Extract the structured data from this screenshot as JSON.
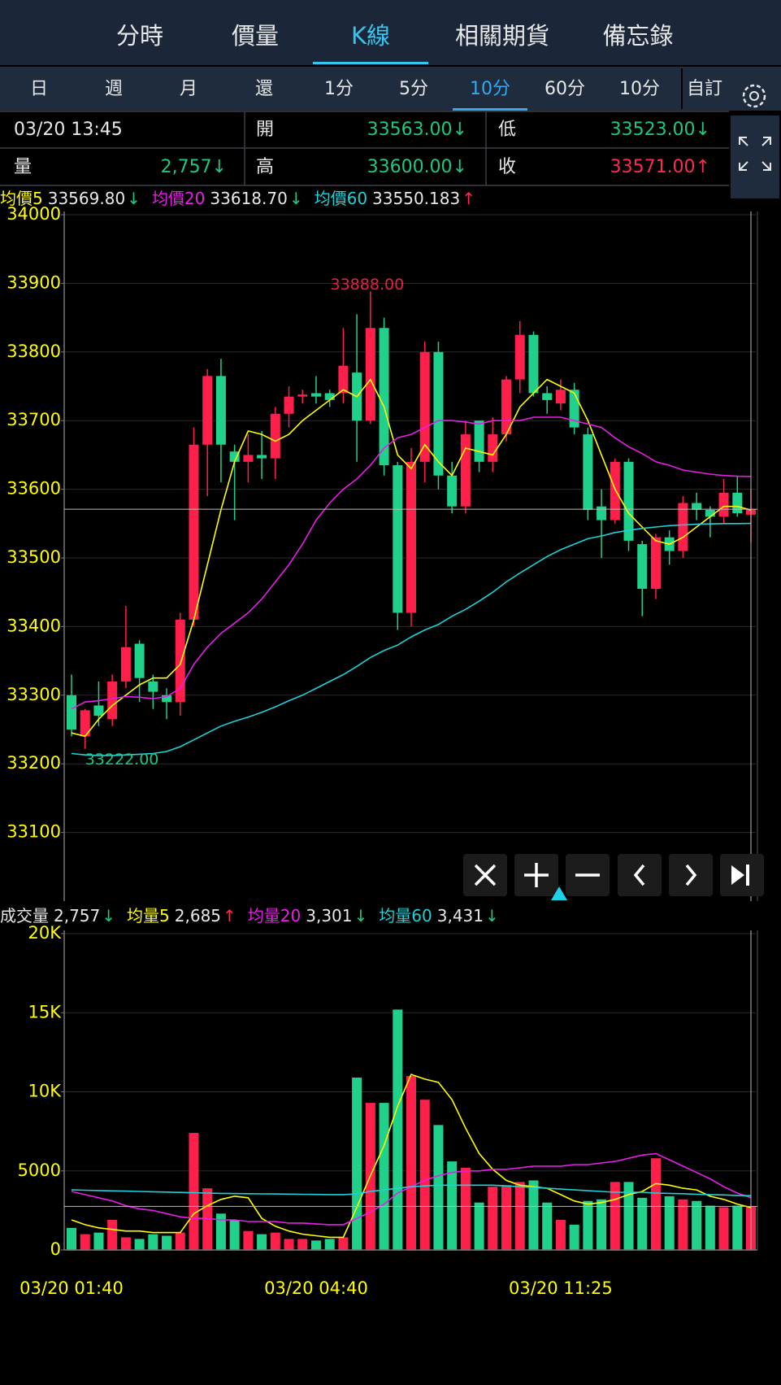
{
  "tabs": {
    "items": [
      "分時",
      "價量",
      "K線",
      "相關期貨",
      "備忘錄"
    ],
    "active": 2
  },
  "periods": {
    "items": [
      "日",
      "週",
      "月",
      "還",
      "1分",
      "5分",
      "10分",
      "60分",
      "10分",
      "自訂"
    ],
    "active": 6
  },
  "quote": {
    "time": "03/20 13:45",
    "items": [
      {
        "label": "量",
        "value": "2,757",
        "arrow": "↓",
        "color": "#1fc77f"
      },
      {
        "label": "開",
        "value": "33563.00",
        "arrow": "↓",
        "color": "#1fc77f"
      },
      {
        "label": "高",
        "value": "33600.00",
        "arrow": "↓",
        "color": "#1fc77f"
      },
      {
        "label": "低",
        "value": "33523.00",
        "arrow": "↓",
        "color": "#1fc77f"
      },
      {
        "label": "收",
        "value": "33571.00",
        "arrow": "↑",
        "color": "#ff2a50"
      }
    ]
  },
  "chart_data": [
    {
      "type": "candlestick",
      "up_color": "#ff1f4b",
      "down_color": "#1fd18a",
      "grid": true,
      "open": [
        33300,
        33240,
        33285,
        33265,
        33320,
        33375,
        33320,
        33300,
        33290,
        33410,
        33665,
        33765,
        33655,
        33640,
        33650,
        33645,
        33710,
        33735,
        33740,
        33740,
        33740,
        33770,
        33700,
        33835,
        33635,
        33420,
        33640,
        33800,
        33620,
        33575,
        33700,
        33640,
        33680,
        33760,
        33825,
        33740,
        33725,
        33745,
        33680,
        33575,
        33555,
        33640,
        33520,
        33455,
        33530,
        33510,
        33580,
        33570,
        33560,
        33595,
        33563
      ],
      "high": [
        33330,
        33280,
        33320,
        33330,
        33430,
        33380,
        33330,
        33310,
        33420,
        33690,
        33775,
        33790,
        33665,
        33680,
        33685,
        33720,
        33750,
        33745,
        33765,
        33745,
        33835,
        33855,
        33888,
        33850,
        33640,
        33660,
        33815,
        33815,
        33640,
        33700,
        33700,
        33705,
        33765,
        33845,
        33830,
        33750,
        33760,
        33755,
        33690,
        33600,
        33645,
        33645,
        33525,
        33535,
        33540,
        33590,
        33595,
        33575,
        33615,
        33620,
        33600
      ],
      "low": [
        33240,
        33222,
        33255,
        33255,
        33310,
        33290,
        33280,
        33265,
        33270,
        33400,
        33590,
        33610,
        33555,
        33610,
        33615,
        33615,
        33690,
        33725,
        33725,
        33720,
        33725,
        33640,
        33695,
        33620,
        33395,
        33400,
        33610,
        33600,
        33565,
        33565,
        33625,
        33625,
        33670,
        33740,
        33735,
        33710,
        33715,
        33680,
        33555,
        33500,
        33550,
        33510,
        33415,
        33440,
        33490,
        33500,
        33555,
        33530,
        33550,
        33560,
        33523
      ],
      "close": [
        33250,
        33278,
        33270,
        33320,
        33370,
        33325,
        33305,
        33290,
        33410,
        33665,
        33765,
        33665,
        33640,
        33650,
        33645,
        33710,
        33735,
        33738,
        33735,
        33730,
        33780,
        33700,
        33835,
        33635,
        33420,
        33640,
        33800,
        33620,
        33575,
        33680,
        33640,
        33680,
        33760,
        33825,
        33740,
        33730,
        33745,
        33690,
        33570,
        33555,
        33640,
        33525,
        33455,
        33530,
        33510,
        33580,
        33570,
        33560,
        33595,
        33565,
        33571
      ],
      "ylim": [
        33000,
        34000
      ],
      "yticks": [
        33100,
        33200,
        33300,
        33400,
        33500,
        33600,
        33700,
        33800,
        33900,
        34000
      ],
      "max_label": "33888.00",
      "min_label": "33222.00",
      "series": [
        {
          "name": "均價5",
          "color": "#ffff00",
          "last_label": "33569.80",
          "arrow": "↓",
          "arrow_color": "#1fc77f",
          "values": [
            33245,
            33240,
            33265,
            33285,
            33300,
            33315,
            33325,
            33325,
            33345,
            33410,
            33490,
            33570,
            33640,
            33685,
            33680,
            33670,
            33680,
            33700,
            33715,
            33730,
            33745,
            33735,
            33760,
            33720,
            33650,
            33630,
            33665,
            33640,
            33620,
            33660,
            33655,
            33650,
            33680,
            33720,
            33740,
            33760,
            33750,
            33740,
            33700,
            33650,
            33600,
            33565,
            33545,
            33525,
            33520,
            33530,
            33545,
            33560,
            33575,
            33575,
            33569.8
          ]
        },
        {
          "name": "均價20",
          "color": "#e81ee8",
          "last_label": "33618.70",
          "arrow": "↓",
          "arrow_color": "#1fc77f",
          "values": [
            33280,
            33290,
            33292,
            33295,
            33298,
            33297,
            33295,
            33298,
            33310,
            33345,
            33370,
            33390,
            33405,
            33420,
            33440,
            33465,
            33490,
            33520,
            33555,
            33580,
            33600,
            33615,
            33635,
            33660,
            33675,
            33680,
            33690,
            33700,
            33700,
            33698,
            33695,
            33700,
            33700,
            33700,
            33705,
            33705,
            33705,
            33700,
            33695,
            33690,
            33675,
            33662,
            33652,
            33640,
            33635,
            33628,
            33625,
            33622,
            33620,
            33619,
            33618.7
          ]
        },
        {
          "name": "均價60",
          "color": "#1ed2d8",
          "last_label": "33550.183",
          "arrow": "↑",
          "arrow_color": "#ff2a50",
          "values": [
            33215,
            33213,
            33212,
            33212,
            33213,
            33214,
            33215,
            33218,
            33225,
            33235,
            33245,
            33255,
            33262,
            33268,
            33275,
            33283,
            33292,
            33300,
            33310,
            33320,
            33330,
            33342,
            33355,
            33365,
            33373,
            33385,
            33395,
            33403,
            33415,
            33425,
            33437,
            33450,
            33465,
            33478,
            33490,
            33502,
            33512,
            33520,
            33528,
            33532,
            33537,
            33540,
            33543,
            33545,
            33547,
            33548,
            33549,
            33549.5,
            33550,
            33550,
            33550.183
          ]
        }
      ]
    },
    {
      "type": "bar",
      "title": "成交量",
      "title_value": "2,757",
      "title_arrow": "↓",
      "title_arrow_color": "#1fc77f",
      "grid": true,
      "categories": [
        "03/20 01:40",
        null,
        null,
        null,
        null,
        null,
        null,
        null,
        null,
        null,
        null,
        null,
        null,
        null,
        null,
        null,
        null,
        null,
        "03/20 04:40",
        null,
        null,
        null,
        null,
        null,
        null,
        null,
        null,
        null,
        null,
        null,
        null,
        null,
        null,
        null,
        null,
        null,
        "03/20 11:25",
        null,
        null,
        null,
        null,
        null,
        null,
        null,
        null,
        null,
        null,
        null,
        null,
        null,
        null
      ],
      "values": [
        1400,
        1000,
        1100,
        1900,
        800,
        700,
        1000,
        900,
        1100,
        7400,
        3900,
        2300,
        1900,
        1200,
        1000,
        1100,
        700,
        700,
        600,
        700,
        800,
        10900,
        9300,
        9300,
        15200,
        11000,
        9500,
        7900,
        5600,
        5200,
        3000,
        4000,
        4100,
        4300,
        4400,
        3000,
        1900,
        1600,
        3100,
        3200,
        4300,
        4300,
        3300,
        5800,
        3400,
        3200,
        3100,
        2800,
        2700,
        2800,
        2757
      ],
      "ylim": [
        0,
        20000
      ],
      "yticks": [
        0,
        5000,
        {
          "value": 10000,
          "label": "10K"
        },
        {
          "value": 15000,
          "label": "15K"
        },
        {
          "value": 20000,
          "label": "20K"
        }
      ],
      "series": [
        {
          "name": "均量5",
          "color": "#ffff00",
          "last_label": "2,685",
          "arrow": "↑",
          "arrow_color": "#ff2a50",
          "values": [
            1900,
            1600,
            1400,
            1300,
            1200,
            1200,
            1100,
            1100,
            1100,
            2300,
            2800,
            3200,
            3400,
            3300,
            2000,
            1500,
            1200,
            1000,
            900,
            800,
            800,
            2700,
            4700,
            6600,
            9100,
            11100,
            10800,
            10600,
            9500,
            7700,
            6100,
            5100,
            4400,
            4100,
            4000,
            3900,
            3500,
            3100,
            2900,
            3000,
            3200,
            3500,
            3700,
            4200,
            4100,
            3900,
            3800,
            3400,
            3200,
            2900,
            2685
          ]
        },
        {
          "name": "均量20",
          "color": "#e81ee8",
          "last_label": "3,301",
          "arrow": "↓",
          "arrow_color": "#1fc77f",
          "values": [
            3700,
            3500,
            3300,
            3100,
            2800,
            2600,
            2500,
            2300,
            2100,
            2000,
            2000,
            1900,
            1900,
            1800,
            1800,
            1800,
            1700,
            1700,
            1650,
            1600,
            1600,
            2000,
            2400,
            2900,
            3600,
            4000,
            4400,
            4700,
            4900,
            5000,
            5000,
            5100,
            5100,
            5200,
            5300,
            5300,
            5300,
            5400,
            5400,
            5500,
            5600,
            5800,
            6000,
            6100,
            5700,
            5300,
            4900,
            4500,
            4000,
            3600,
            3301
          ]
        },
        {
          "name": "均量60",
          "color": "#1ed2d8",
          "last_label": "3,431",
          "arrow": "↓",
          "arrow_color": "#1fc77f",
          "values": [
            3800,
            3780,
            3760,
            3740,
            3720,
            3700,
            3680,
            3660,
            3640,
            3620,
            3600,
            3580,
            3570,
            3560,
            3550,
            3540,
            3530,
            3520,
            3510,
            3500,
            3500,
            3550,
            3700,
            3800,
            3900,
            4000,
            4050,
            4100,
            4100,
            4100,
            4100,
            4100,
            4050,
            4000,
            3950,
            3900,
            3850,
            3800,
            3750,
            3700,
            3650,
            3650,
            3650,
            3600,
            3580,
            3560,
            3520,
            3500,
            3480,
            3450,
            3431
          ]
        }
      ]
    }
  ]
}
